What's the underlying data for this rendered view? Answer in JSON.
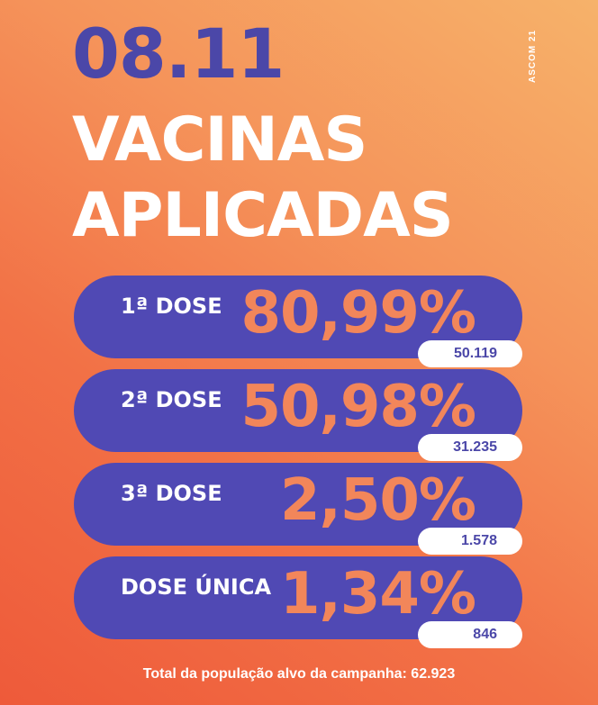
{
  "header": {
    "date": "08.11",
    "credit": "ASCOM 21",
    "title_line1": "VACINAS",
    "title_line2": "APLICADAS"
  },
  "doses": [
    {
      "label": "1ª DOSE",
      "percent": "80,99%",
      "count": "50.119"
    },
    {
      "label": "2ª DOSE",
      "percent": "50,98%",
      "count": "31.235"
    },
    {
      "label": "3ª DOSE",
      "percent": "2,50%",
      "count": "1.578"
    },
    {
      "label": "DOSE ÚNICA",
      "percent": "1,34%",
      "count": "846"
    }
  ],
  "footer": {
    "text": "Total da população alvo da campanha: 62.923"
  },
  "colors": {
    "primary_purple": "#5049b4",
    "accent_orange": "#f2865a",
    "text_white": "#ffffff"
  }
}
